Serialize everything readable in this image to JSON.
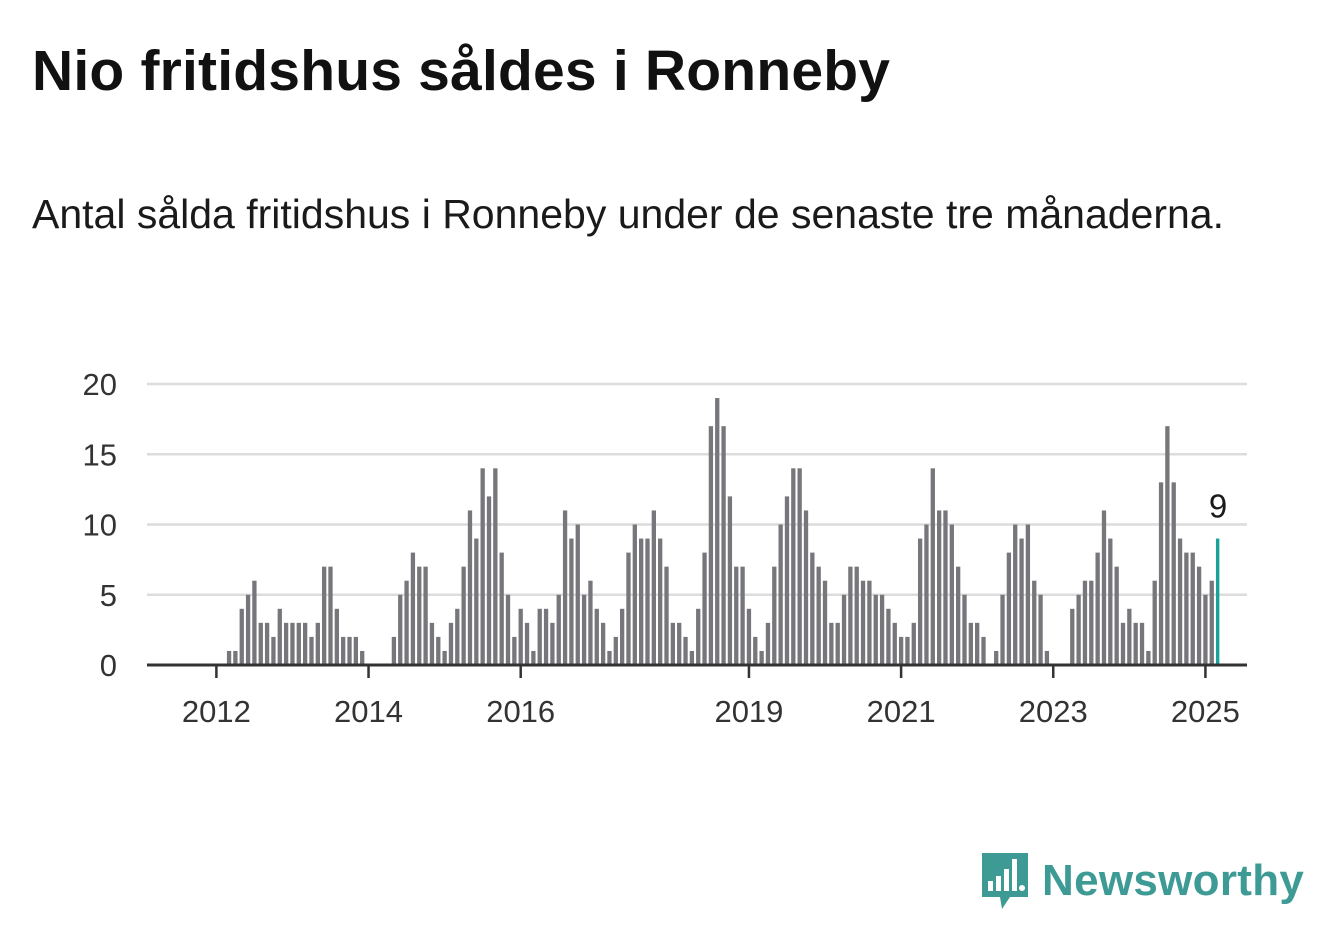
{
  "title": "Nio fritidshus såldes i Ronneby",
  "subtitle": "Antal sålda fritidshus i Ronneby under de senaste tre månaderna.",
  "brand": {
    "name": "Newsworthy"
  },
  "colors": {
    "bar": "#77767b",
    "highlight": "#17a397",
    "grid": "#dcdcdc",
    "axis": "#333333",
    "brand": "#3d9a94"
  },
  "chart_data": {
    "type": "bar",
    "y_ticks": [
      "0",
      "5",
      "10",
      "15",
      "20"
    ],
    "ylim": [
      0,
      20
    ],
    "x_ticks": [
      "2012",
      "2014",
      "2016",
      "2019",
      "2021",
      "2023",
      "2025"
    ],
    "start": "2011-06",
    "frequency": "monthly",
    "values": [
      0,
      0,
      0,
      0,
      0,
      0,
      0,
      0,
      0,
      1,
      1,
      4,
      5,
      6,
      3,
      3,
      2,
      4,
      3,
      3,
      3,
      3,
      2,
      3,
      7,
      7,
      4,
      2,
      2,
      2,
      1,
      0,
      0,
      0,
      0,
      2,
      5,
      6,
      8,
      7,
      7,
      3,
      2,
      1,
      3,
      4,
      7,
      11,
      9,
      14,
      12,
      14,
      8,
      5,
      2,
      4,
      3,
      1,
      4,
      4,
      3,
      5,
      11,
      9,
      10,
      5,
      6,
      4,
      3,
      1,
      2,
      4,
      8,
      10,
      9,
      9,
      11,
      9,
      7,
      3,
      3,
      2,
      1,
      4,
      8,
      17,
      19,
      17,
      12,
      7,
      7,
      4,
      2,
      1,
      3,
      7,
      10,
      12,
      14,
      14,
      11,
      8,
      7,
      6,
      3,
      3,
      5,
      7,
      7,
      6,
      6,
      5,
      5,
      4,
      3,
      2,
      2,
      3,
      9,
      10,
      14,
      11,
      11,
      10,
      7,
      5,
      3,
      3,
      2,
      0,
      1,
      5,
      8,
      10,
      9,
      10,
      6,
      5,
      1,
      0,
      0,
      0,
      4,
      5,
      6,
      6,
      8,
      11,
      9,
      7,
      3,
      4,
      3,
      3,
      1,
      6,
      13,
      17,
      13,
      9,
      8,
      8,
      7,
      5,
      6,
      9
    ],
    "highlight_label": "9"
  }
}
